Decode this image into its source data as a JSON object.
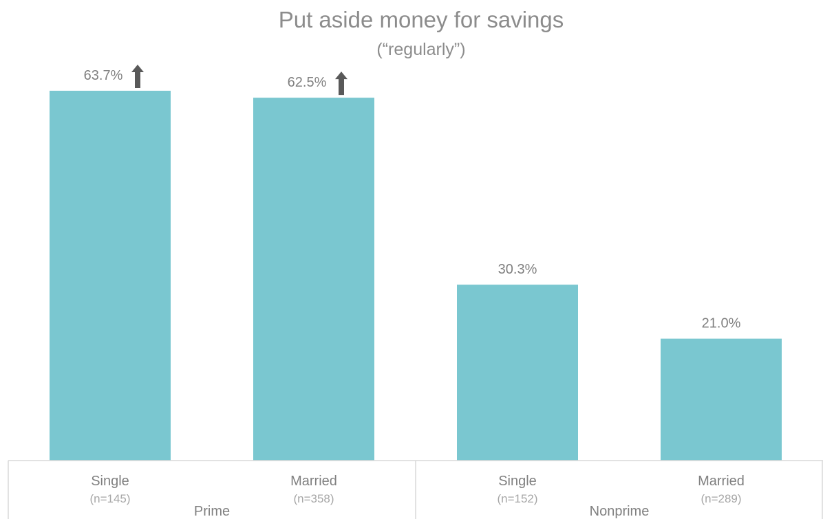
{
  "chart_data": {
    "type": "bar",
    "title": "Put aside money for savings",
    "subtitle": "(“regularly”)",
    "categories": [
      "Single",
      "Married",
      "Single",
      "Married"
    ],
    "sample_sizes": [
      "(n=145)",
      "(n=358)",
      "(n=152)",
      "(n=289)"
    ],
    "groups": [
      {
        "label": "Prime",
        "categories": [
          0,
          1
        ]
      },
      {
        "label": "Nonprime",
        "categories": [
          2,
          3
        ]
      }
    ],
    "values": [
      63.7,
      62.5,
      30.3,
      21.0
    ],
    "value_labels": [
      "63.7%",
      "62.5%",
      "30.3%",
      "21.0%"
    ],
    "up_arrow": [
      true,
      true,
      false,
      false
    ],
    "ylim": [
      0,
      70
    ],
    "grid": false,
    "legend": "none",
    "colors": {
      "bar": "#7ac7d0",
      "arrow": "#595959",
      "axis": "#d9d9d9",
      "text": "#808080"
    }
  }
}
